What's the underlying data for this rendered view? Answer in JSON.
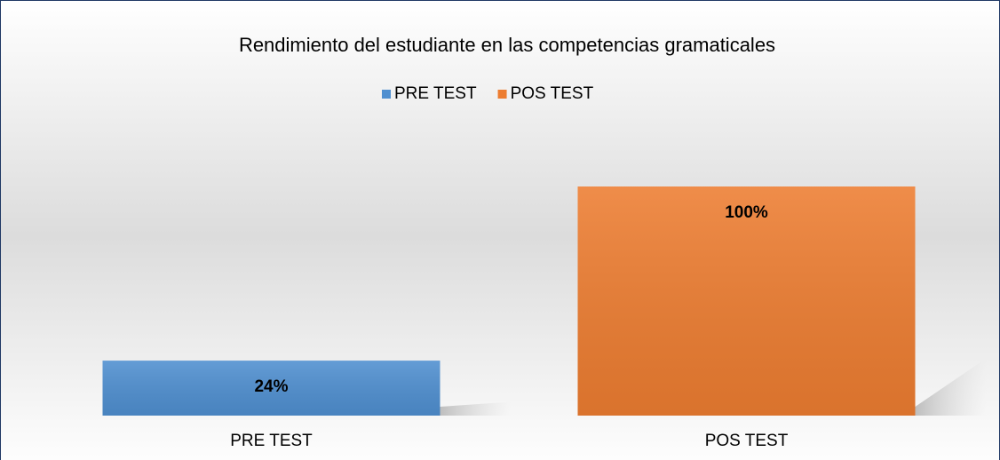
{
  "chart_data": {
    "type": "bar",
    "title": "Rendimiento del estudiante en las competencias gramaticales",
    "categories": [
      "PRE TEST",
      "POS TEST"
    ],
    "values": [
      24,
      100
    ],
    "value_labels": [
      "24%",
      "100%"
    ],
    "colors": [
      "#4f8fd0",
      "#ed7d31"
    ],
    "legend": "top"
  }
}
